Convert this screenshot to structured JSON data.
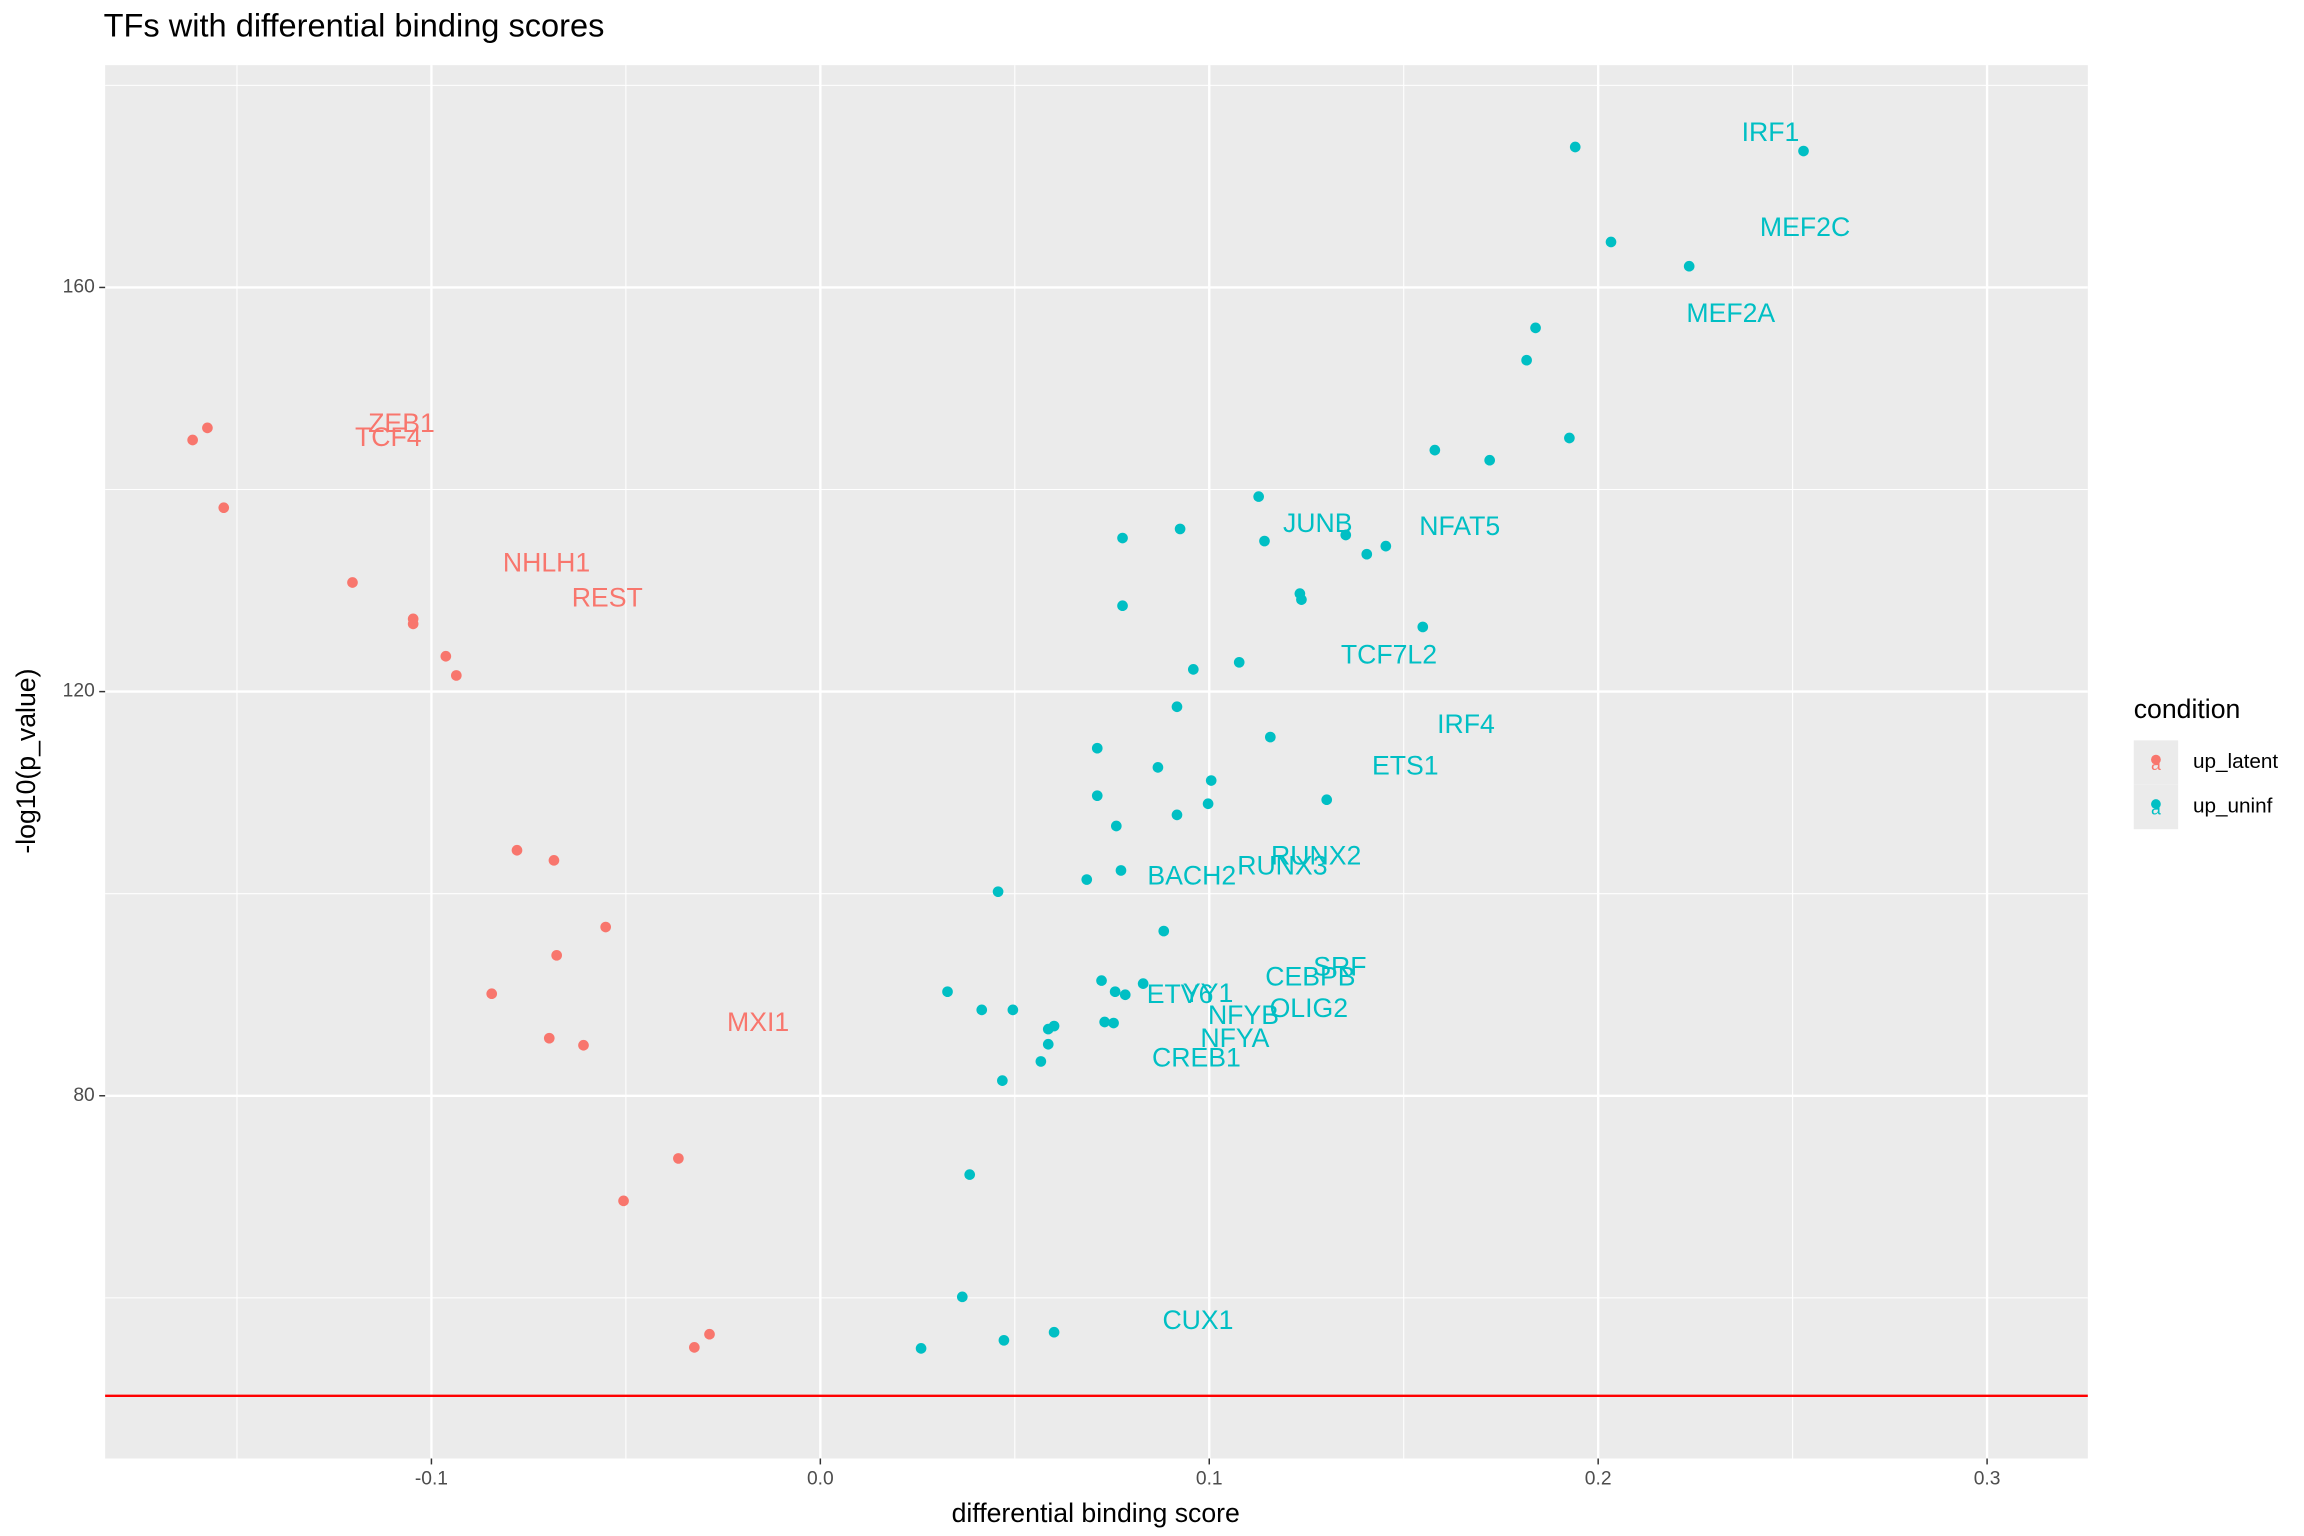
{
  "chart_data": {
    "type": "scatter",
    "title": "TFs with differential binding scores",
    "x_label": "differential binding score",
    "y_label": "-log10(p_value)",
    "xlim": [
      -0.1839,
      0.3259
    ],
    "ylim": [
      44.1,
      182.0
    ],
    "xticks": [
      -0.1,
      {
        "value": 0,
        "label": "0.0"
      },
      0.1,
      0.2,
      0.3
    ],
    "yticks": [
      80,
      120,
      160
    ],
    "grid": true,
    "legend_title": "condition",
    "legend_position": "right",
    "legend_key_glyph": "a",
    "hline": {
      "y": 50.3,
      "color": "#ff0000"
    },
    "series": [
      {
        "name": "up_latent",
        "color": "#f8766d",
        "x": [
          -0.1614,
          -0.1576,
          -0.1534,
          -0.1203,
          -0.1047,
          -0.1047,
          -0.0963,
          -0.0936,
          -0.078,
          -0.0685,
          -0.0552,
          -0.0678,
          -0.0845,
          -0.0697,
          -0.0609,
          -0.0365,
          -0.0506,
          -0.0285,
          -0.0324
        ],
        "values": [
          144.9,
          146.1,
          138.2,
          130.8,
          127.2,
          126.7,
          123.5,
          121.6,
          104.3,
          103.3,
          96.7,
          93.9,
          90.1,
          85.7,
          85.0,
          73.8,
          69.6,
          56.4,
          55.1
        ]
      },
      {
        "name": "up_uninf",
        "color": "#00bfc4",
        "x": [
          0.1941,
          0.2528,
          0.2033,
          0.2234,
          0.1839,
          0.1816,
          0.1926,
          0.158,
          0.1721,
          0.1127,
          0.0925,
          0.0777,
          0.1351,
          0.1142,
          0.1454,
          0.1405,
          0.0777,
          0.1233,
          0.1237,
          0.1549,
          0.1077,
          0.0959,
          0.0917,
          0.1157,
          0.0712,
          0.0868,
          0.1005,
          0.0712,
          0.1302,
          0.0997,
          0.0917,
          0.0761,
          0.0773,
          0.0685,
          0.0457,
          0.0883,
          0.0723,
          0.083,
          0.0327,
          0.0758,
          0.0784,
          0.0415,
          0.0495,
          0.0731,
          0.0754,
          0.0601,
          0.0586,
          0.0586,
          0.0567,
          0.0468,
          0.0384,
          0.0365,
          0.0601,
          0.0472,
          0.0259
        ],
        "values": [
          173.9,
          173.5,
          164.5,
          162.1,
          156.0,
          152.8,
          145.1,
          143.9,
          142.9,
          139.3,
          136.1,
          135.2,
          135.5,
          134.9,
          134.4,
          133.6,
          128.5,
          129.7,
          129.1,
          126.4,
          122.9,
          122.2,
          118.5,
          115.5,
          114.4,
          112.5,
          111.2,
          109.7,
          109.3,
          108.9,
          107.8,
          106.7,
          102.3,
          101.4,
          100.2,
          96.3,
          91.4,
          91.1,
          90.3,
          90.3,
          90.0,
          88.5,
          88.5,
          87.3,
          87.2,
          86.9,
          86.6,
          85.1,
          83.4,
          81.5,
          72.2,
          60.1,
          56.6,
          55.8,
          55.0
        ]
      }
    ],
    "annotations": [
      {
        "text": "IRF1",
        "x": 0.2443,
        "y": 175.2,
        "color": "#00bfc4"
      },
      {
        "text": "MEF2C",
        "x": 0.2532,
        "y": 165.8,
        "color": "#00bfc4"
      },
      {
        "text": "MEF2A",
        "x": 0.2341,
        "y": 157.3,
        "color": "#00bfc4"
      },
      {
        "text": "JUNB",
        "x": 0.1279,
        "y": 136.5,
        "color": "#00bfc4"
      },
      {
        "text": "NFAT5",
        "x": 0.1644,
        "y": 136.2,
        "color": "#00bfc4"
      },
      {
        "text": "TCF7L2",
        "x": 0.1462,
        "y": 123.5,
        "color": "#00bfc4"
      },
      {
        "text": "IRF4",
        "x": 0.166,
        "y": 116.6,
        "color": "#00bfc4"
      },
      {
        "text": "ETS1",
        "x": 0.1504,
        "y": 112.5,
        "color": "#00bfc4"
      },
      {
        "text": "RUNX2",
        "x": 0.1275,
        "y": 103.6,
        "color": "#00bfc4"
      },
      {
        "text": "RUNX3",
        "x": 0.1188,
        "y": 102.6,
        "color": "#00bfc4"
      },
      {
        "text": "BACH2",
        "x": 0.0955,
        "y": 101.6,
        "color": "#00bfc4"
      },
      {
        "text": "SRF",
        "x": 0.1336,
        "y": 92.6,
        "color": "#00bfc4"
      },
      {
        "text": "CEBPB",
        "x": 0.126,
        "y": 91.6,
        "color": "#00bfc4"
      },
      {
        "text": "ETV6",
        "x": 0.0925,
        "y": 89.9,
        "color": "#00bfc4"
      },
      {
        "text": "YY1",
        "x": 0.0997,
        "y": 90.0,
        "color": "#00bfc4"
      },
      {
        "text": "NFYB",
        "x": 0.1088,
        "y": 87.8,
        "color": "#00bfc4"
      },
      {
        "text": "OLIG2",
        "x": 0.1256,
        "y": 88.5,
        "color": "#00bfc4"
      },
      {
        "text": "NFYA",
        "x": 0.1066,
        "y": 85.5,
        "color": "#00bfc4"
      },
      {
        "text": "CREB1",
        "x": 0.0967,
        "y": 83.6,
        "color": "#00bfc4"
      },
      {
        "text": "CUX1",
        "x": 0.0971,
        "y": 57.6,
        "color": "#00bfc4"
      },
      {
        "text": "ZEB1",
        "x": -0.1077,
        "y": 146.4,
        "color": "#f8766d"
      },
      {
        "text": "TCF4",
        "x": -0.1111,
        "y": 145.0,
        "color": "#f8766d"
      },
      {
        "text": "NHLH1",
        "x": -0.0704,
        "y": 132.6,
        "color": "#f8766d"
      },
      {
        "text": "REST",
        "x": -0.0548,
        "y": 129.1,
        "color": "#f8766d"
      },
      {
        "text": "MXI1",
        "x": -0.016,
        "y": 87.1,
        "color": "#f8766d"
      }
    ]
  }
}
